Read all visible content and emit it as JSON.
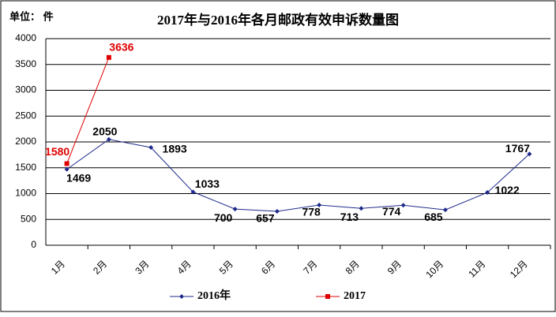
{
  "chart_data": {
    "type": "line",
    "title": "2017年与2016年各月邮政有效申诉数量图",
    "unit_label": "单位： 件",
    "categories": [
      "1月",
      "2月",
      "3月",
      "4月",
      "5月",
      "6月",
      "7月",
      "8月",
      "9月",
      "10月",
      "11月",
      "12月"
    ],
    "series": [
      {
        "name": "2016年",
        "color": "#1f2a8c",
        "values": [
          1469,
          2050,
          1893,
          1033,
          700,
          657,
          778,
          713,
          774,
          685,
          1022,
          1767
        ]
      },
      {
        "name": "2017",
        "color": "#e00000",
        "values": [
          1580,
          3636,
          null,
          null,
          null,
          null,
          null,
          null,
          null,
          null,
          null,
          null
        ]
      }
    ],
    "ylim": [
      0,
      4000
    ],
    "yticks": [
      0,
      500,
      1000,
      1500,
      2000,
      2500,
      3000,
      3500,
      4000
    ],
    "grid": true,
    "legend": "bottom"
  }
}
